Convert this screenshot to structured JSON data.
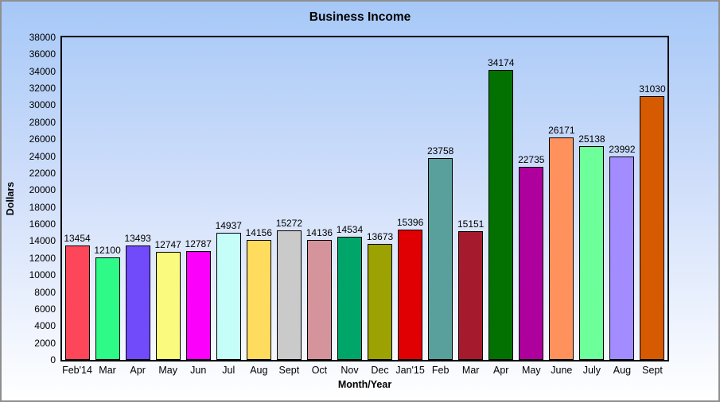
{
  "window": {
    "border_color": "#8f8f8f",
    "background_top": "#a6c8f7",
    "background_bottom": "#ffffff"
  },
  "chart_data": {
    "type": "bar",
    "title": "Business Income",
    "xlabel": "Month/Year",
    "ylabel": "Dollars",
    "categories": [
      "Feb'14",
      "Mar",
      "Apr",
      "May",
      "Jun",
      "Jul",
      "Aug",
      "Sept",
      "Oct",
      "Nov",
      "Dec",
      "Jan'15",
      "Feb",
      "Mar",
      "Apr",
      "May",
      "June",
      "July",
      "Aug",
      "Sept"
    ],
    "values": [
      13454,
      12100,
      13493,
      12747,
      12787,
      14937,
      14156,
      15272,
      14136,
      14534,
      13673,
      15396,
      23758,
      15151,
      34174,
      22735,
      26171,
      25138,
      23992,
      31030
    ],
    "colors": [
      "#FD4659",
      "#2EFB87",
      "#714AFA",
      "#FAFB7E",
      "#FB00FB",
      "#C5FDF9",
      "#FFDB5E",
      "#CACACA",
      "#D5939B",
      "#00A569",
      "#9CA202",
      "#E00003",
      "#599F9C",
      "#A51A2C",
      "#027102",
      "#AD009C",
      "#FF915D",
      "#6DFF99",
      "#A38CFF",
      "#D65B00"
    ],
    "ylim": [
      0,
      38000
    ],
    "y_step": 2000,
    "grid": false,
    "legend": null,
    "value_labels_shown": true,
    "bar_border_color": "#000000",
    "plot_border_color": "#000000"
  }
}
